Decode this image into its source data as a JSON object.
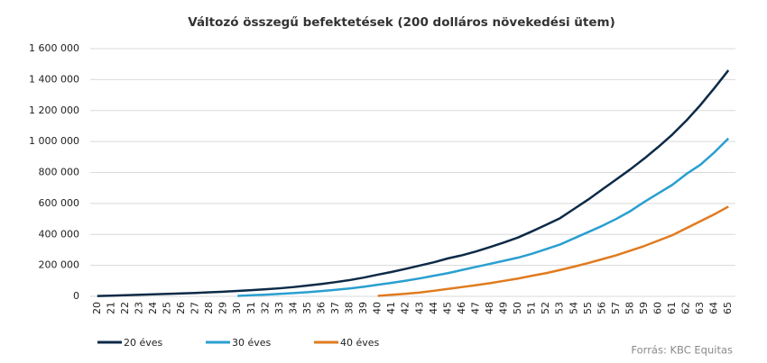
{
  "chart_data": {
    "type": "line",
    "title": "Változó összegű befektetések (200 dolláros növekedési ütem)",
    "source": "Forrás: KBC Equitas",
    "categories": [
      "20",
      "21",
      "22",
      "23",
      "24",
      "25",
      "26",
      "27",
      "28",
      "29",
      "30",
      "31",
      "32",
      "33",
      "34",
      "35",
      "36",
      "37",
      "38",
      "39",
      "40",
      "41",
      "42",
      "43",
      "44",
      "45",
      "46",
      "47",
      "48",
      "49",
      "50",
      "51",
      "52",
      "53",
      "54",
      "55",
      "56",
      "57",
      "58",
      "59",
      "60",
      "61",
      "62",
      "63",
      "64",
      "65"
    ],
    "series": [
      {
        "name": "20 éves",
        "color": "#0d2a47",
        "values": [
          2000,
          4500,
          7000,
          10000,
          13000,
          16000,
          19000,
          22000,
          26000,
          30000,
          35000,
          40000,
          46000,
          52000,
          60000,
          70000,
          80000,
          92000,
          105000,
          121000,
          140000,
          158000,
          178000,
          199000,
          220000,
          245000,
          265000,
          290000,
          318000,
          348000,
          380000,
          420000,
          462000,
          505000,
          565000,
          625000,
          690000,
          755000,
          820000,
          890000,
          965000,
          1045000,
          1135000,
          1235000,
          1345000,
          1460000
        ]
      },
      {
        "name": "30 éves",
        "color": "#2a9fd0",
        "values": [
          null,
          null,
          null,
          null,
          null,
          null,
          null,
          null,
          null,
          null,
          3000,
          7000,
          11000,
          16000,
          21000,
          27000,
          34000,
          42000,
          51000,
          62000,
          75000,
          87000,
          101000,
          116000,
          133000,
          150000,
          170000,
          190000,
          210000,
          230000,
          250000,
          275000,
          305000,
          335000,
          375000,
          415000,
          455000,
          500000,
          550000,
          610000,
          665000,
          720000,
          790000,
          850000,
          930000,
          1020000
        ]
      },
      {
        "name": "40 éves",
        "color": "#e07b1f",
        "values": [
          null,
          null,
          null,
          null,
          null,
          null,
          null,
          null,
          null,
          null,
          null,
          null,
          null,
          null,
          null,
          null,
          null,
          null,
          null,
          null,
          3000,
          10000,
          17000,
          25000,
          36000,
          48000,
          60000,
          72000,
          85000,
          100000,
          115000,
          133000,
          150000,
          170000,
          192000,
          215000,
          240000,
          265000,
          295000,
          325000,
          360000,
          395000,
          440000,
          485000,
          530000,
          580000
        ]
      }
    ],
    "ylim": [
      0,
      1600000
    ],
    "yticks": [
      0,
      {
        "value": 200000,
        "label": "200 000"
      },
      {
        "value": 400000,
        "label": "400 000"
      },
      {
        "value": 600000,
        "label": "600 000"
      },
      {
        "value": 800000,
        "label": "800 000"
      },
      {
        "value": 1000000,
        "label": "1 000 000"
      },
      {
        "value": 1200000,
        "label": "1 200 000"
      },
      {
        "value": 1400000,
        "label": "1 400 000"
      },
      {
        "value": 1600000,
        "label": "1 600 000"
      }
    ],
    "grid": true,
    "legend": "bottom-left"
  }
}
